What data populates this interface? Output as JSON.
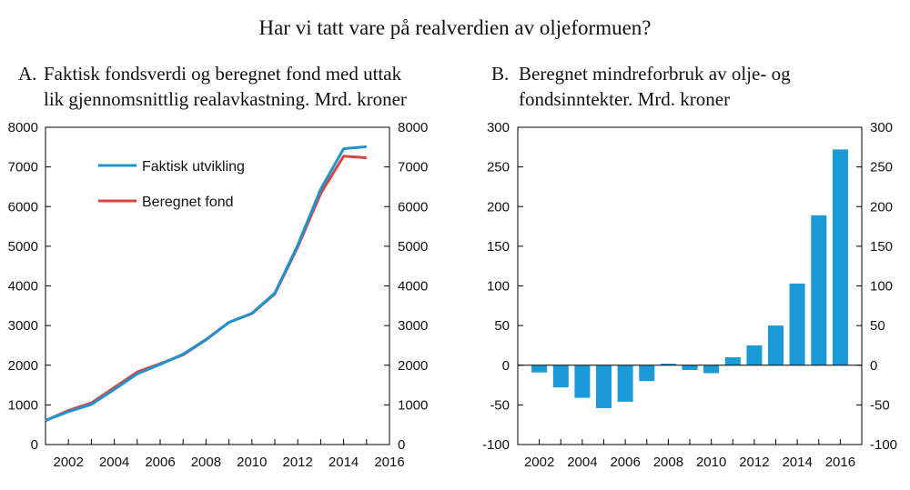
{
  "figure_title": "Har vi tatt vare på realverdien av oljeformuen?",
  "colors": {
    "actual": "#1f93cf",
    "computed": "#d9453f",
    "bars": "#1a9ad6",
    "axis": "#000000"
  },
  "chart_data": [
    {
      "type": "line",
      "panel_letter": "A.",
      "title_lines": [
        "Faktisk fondsverdi og beregnet fond med uttak",
        "lik gjennomsnittlig realavkastning. Mrd. kroner"
      ],
      "x": [
        2001,
        2002,
        2003,
        2004,
        2005,
        2006,
        2007,
        2008,
        2009,
        2010,
        2011,
        2012,
        2013,
        2014,
        2015,
        2016
      ],
      "xlim": [
        2001,
        2016
      ],
      "x_ticks": [
        "2002",
        "2004",
        "2006",
        "2008",
        "2010",
        "2012",
        "2014",
        "2016"
      ],
      "ylim": [
        0,
        8000
      ],
      "y_ticks": [
        "0",
        "1000",
        "2000",
        "3000",
        "4000",
        "5000",
        "6000",
        "7000",
        "8000"
      ],
      "grid": false,
      "legend_position": "top-left",
      "series": [
        {
          "name": "Faktisk utvikling",
          "values": [
            610,
            830,
            1010,
            1390,
            1780,
            2020,
            2280,
            2650,
            3080,
            3310,
            3820,
            5030,
            6440,
            7460,
            7510,
            null
          ]
        },
        {
          "name": "Beregnet fond",
          "values": [
            600,
            860,
            1050,
            1440,
            1830,
            2040,
            2260,
            2640,
            3080,
            3300,
            3800,
            4980,
            6330,
            7270,
            7230,
            null
          ]
        }
      ]
    },
    {
      "type": "bar",
      "panel_letter": "B.",
      "title_lines": [
        "Beregnet mindreforbruk av olje- og",
        "fondsinntekter. Mrd. kroner"
      ],
      "categories": [
        "2002",
        "2003",
        "2004",
        "2005",
        "2006",
        "2007",
        "2008",
        "2009",
        "2010",
        "2011",
        "2012",
        "2013",
        "2014",
        "2015",
        "2016"
      ],
      "x_ticks": [
        "2002",
        "2004",
        "2006",
        "2008",
        "2010",
        "2012",
        "2014",
        "2016"
      ],
      "values": [
        -9,
        -28,
        -41,
        -54,
        -46,
        -20,
        2,
        -6,
        -10,
        10,
        25,
        50,
        103,
        189,
        272
      ],
      "ylim": [
        -100,
        300
      ],
      "y_ticks": [
        "-100",
        "-50",
        "0",
        "50",
        "100",
        "150",
        "200",
        "250",
        "300"
      ],
      "grid": false
    }
  ]
}
